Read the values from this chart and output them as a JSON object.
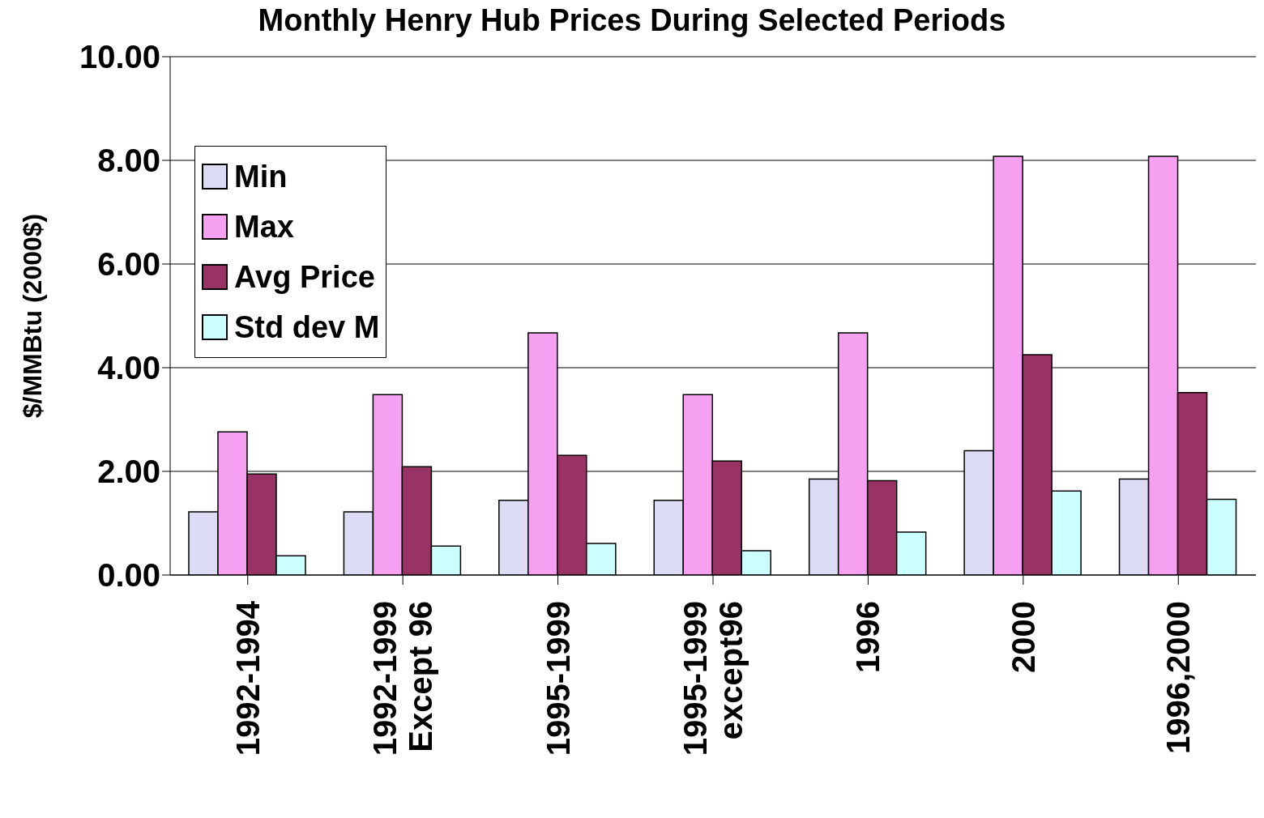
{
  "chart_data": {
    "type": "bar",
    "title": "Monthly Henry Hub Prices During Selected Periods",
    "ylabel": "$/MMBtu (2000$)",
    "categories": [
      "1992-1994",
      "1992-1999 Except 96",
      "1995-1999",
      "1995-1999 except96",
      "1996",
      "2000",
      "1996,2000"
    ],
    "series": [
      {
        "name": "Min",
        "color": "#dcdcf5",
        "values": [
          1.22,
          1.22,
          1.44,
          1.44,
          1.85,
          2.4,
          1.85
        ]
      },
      {
        "name": "Max",
        "color": "#f5a0f0",
        "values": [
          2.76,
          3.48,
          4.67,
          3.48,
          4.67,
          8.08,
          8.08
        ]
      },
      {
        "name": "Avg Price",
        "color": "#993366",
        "values": [
          1.95,
          2.09,
          2.31,
          2.2,
          1.82,
          4.25,
          3.52
        ]
      },
      {
        "name": "Std dev M",
        "color": "#ccffff",
        "values": [
          0.37,
          0.56,
          0.61,
          0.47,
          0.83,
          1.62,
          1.46
        ]
      }
    ],
    "ylim": [
      0,
      10
    ],
    "yticks": [
      {
        "value": 0,
        "label": "0.00"
      },
      {
        "value": 2,
        "label": "2.00"
      },
      {
        "value": 4,
        "label": "4.00"
      },
      {
        "value": 6,
        "label": "6.00"
      },
      {
        "value": 8,
        "label": "8.00"
      },
      {
        "value": 10,
        "label": "10.00"
      }
    ],
    "grid": "y",
    "legend": "top left"
  }
}
